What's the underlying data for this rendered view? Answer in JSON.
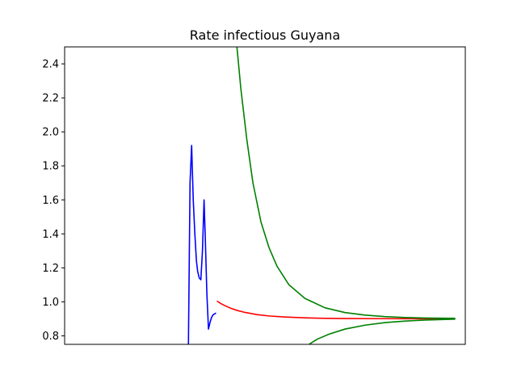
{
  "chart_data": {
    "type": "line",
    "title": "Rate infectious Guyana",
    "xlabel": "",
    "ylabel": "",
    "ylim": [
      0.75,
      2.5
    ],
    "xlim": [
      0,
      100
    ],
    "x_tick_labels_visible": false,
    "y_ticks": [
      0.8,
      1.0,
      1.2,
      1.4,
      1.6,
      1.8,
      2.0,
      2.2,
      2.4
    ],
    "y_tick_labels": [
      "0.8",
      "1.0",
      "1.2",
      "1.4",
      "1.6",
      "1.8",
      "2.0",
      "2.2",
      "2.4"
    ],
    "grid": false,
    "legend": false,
    "series": [
      {
        "color": "#0000ff",
        "x": [
          30.9,
          31.3,
          31.7,
          32.1,
          32.5,
          32.9,
          33.2,
          33.6,
          34.0,
          34.4,
          34.8,
          35.1,
          35.5,
          35.9,
          36.3,
          36.7,
          37.1,
          37.5,
          37.8
        ],
        "y": [
          0.75,
          1.7,
          1.92,
          1.6,
          1.4,
          1.24,
          1.18,
          1.14,
          1.13,
          1.3,
          1.6,
          1.38,
          1.05,
          0.84,
          0.88,
          0.91,
          0.925,
          0.93,
          0.935
        ]
      },
      {
        "color": "#ff0000",
        "x": [
          38.0,
          39.0,
          40.0,
          41.5,
          43.0,
          45.0,
          48.0,
          51.0,
          55.0,
          60.0,
          65.0,
          70.0,
          80.0,
          90.0,
          97.5
        ],
        "y": [
          1.005,
          0.99,
          0.978,
          0.962,
          0.95,
          0.938,
          0.925,
          0.917,
          0.911,
          0.906,
          0.903,
          0.902,
          0.901,
          0.9,
          0.9
        ]
      },
      {
        "color": "#008000",
        "x": [
          43.0,
          44.0,
          45.5,
          47.0,
          49.0,
          51.0,
          53.0,
          56.0,
          60.0,
          65.0,
          70.0,
          75.0,
          80.0,
          85.0,
          90.0,
          97.5
        ],
        "y": [
          2.5,
          2.25,
          1.95,
          1.7,
          1.47,
          1.32,
          1.21,
          1.1,
          1.02,
          0.965,
          0.937,
          0.922,
          0.913,
          0.908,
          0.905,
          0.903
        ]
      },
      {
        "color": "#008000",
        "x": [
          61.0,
          63.0,
          66.0,
          70.0,
          75.0,
          80.0,
          85.0,
          90.0,
          97.5
        ],
        "y": [
          0.75,
          0.78,
          0.81,
          0.84,
          0.863,
          0.878,
          0.887,
          0.893,
          0.898
        ]
      }
    ]
  }
}
